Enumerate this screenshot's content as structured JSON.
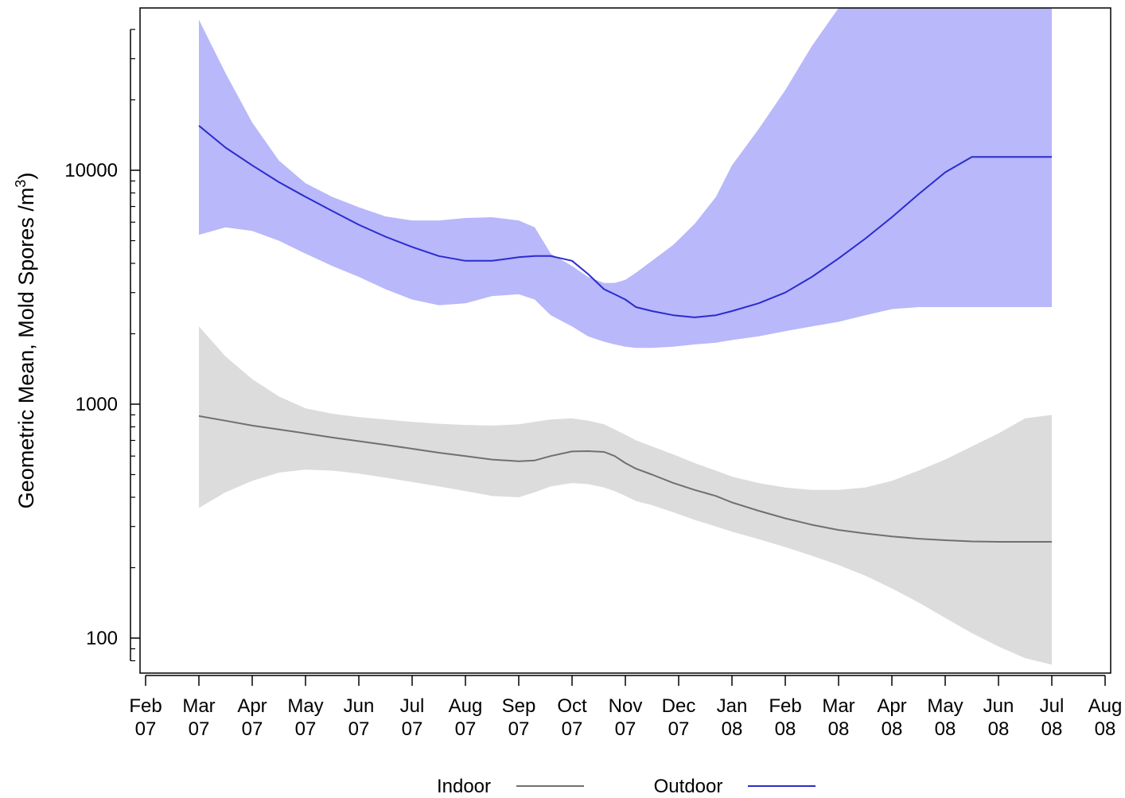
{
  "chart_data": {
    "type": "line",
    "ylabel": "Geometric Mean, Mold Spores /m",
    "ylabel_superscript": "3",
    "ylabel_suffix": ")",
    "ylabel_prefix_paren": "",
    "yscale": "log",
    "ylim": [
      70,
      50000
    ],
    "yticks_major": [
      {
        "value": 100,
        "label": "100"
      },
      {
        "value": 1000,
        "label": "1000"
      },
      {
        "value": 10000,
        "label": "10000"
      }
    ],
    "yticks_minor": [
      80,
      90,
      200,
      300,
      400,
      500,
      600,
      700,
      800,
      900,
      2000,
      3000,
      4000,
      5000,
      6000,
      7000,
      8000,
      9000,
      20000,
      30000,
      40000
    ],
    "xlim": [
      -1,
      18
    ],
    "xticks": [
      {
        "pos": 0,
        "month": "Feb",
        "year": "07"
      },
      {
        "pos": 1,
        "month": "Mar",
        "year": "07"
      },
      {
        "pos": 2,
        "month": "Apr",
        "year": "07"
      },
      {
        "pos": 3,
        "month": "May",
        "year": "07"
      },
      {
        "pos": 4,
        "month": "Jun",
        "year": "07"
      },
      {
        "pos": 5,
        "month": "Jul",
        "year": "07"
      },
      {
        "pos": 6,
        "month": "Aug",
        "year": "07"
      },
      {
        "pos": 7,
        "month": "Sep",
        "year": "07"
      },
      {
        "pos": 8,
        "month": "Oct",
        "year": "07"
      },
      {
        "pos": 9,
        "month": "Nov",
        "year": "07"
      },
      {
        "pos": 10,
        "month": "Dec",
        "year": "07"
      },
      {
        "pos": 11,
        "month": "Jan",
        "year": "08"
      },
      {
        "pos": 12,
        "month": "Feb",
        "year": "08"
      },
      {
        "pos": 13,
        "month": "Mar",
        "year": "08"
      },
      {
        "pos": 14,
        "month": "Apr",
        "year": "08"
      },
      {
        "pos": 15,
        "month": "May",
        "year": "08"
      },
      {
        "pos": 16,
        "month": "Jun",
        "year": "08"
      },
      {
        "pos": 17,
        "month": "Jul",
        "year": "08"
      },
      {
        "pos": 18,
        "month": "Aug",
        "year": "08"
      }
    ],
    "x": [
      1,
      1.5,
      2,
      2.5,
      3,
      3.5,
      4,
      4.5,
      5,
      5.5,
      6,
      6.5,
      7,
      7.3,
      7.6,
      8,
      8.3,
      8.6,
      8.8,
      9,
      9.2,
      9.5,
      9.9,
      10.3,
      10.7,
      11,
      11.5,
      12,
      12.5,
      13,
      13.5,
      14,
      14.5,
      15,
      15.5,
      16,
      16.5,
      17
    ],
    "series": [
      {
        "name": "Indoor",
        "color": "#707070",
        "band_color": "#dcdcdc",
        "mean": [
          890,
          850,
          810,
          780,
          750,
          720,
          695,
          670,
          645,
          620,
          600,
          580,
          570,
          575,
          600,
          628,
          630,
          625,
          600,
          560,
          530,
          500,
          460,
          430,
          405,
          380,
          350,
          325,
          305,
          290,
          280,
          272,
          266,
          262,
          259,
          258,
          258,
          258
        ],
        "lower": [
          360,
          420,
          470,
          510,
          525,
          520,
          505,
          485,
          465,
          445,
          425,
          405,
          400,
          420,
          445,
          460,
          455,
          440,
          425,
          405,
          385,
          370,
          345,
          320,
          300,
          285,
          265,
          245,
          225,
          205,
          185,
          163,
          142,
          122,
          105,
          92,
          82,
          77
        ],
        "upper": [
          2150,
          1600,
          1280,
          1080,
          960,
          910,
          880,
          860,
          840,
          825,
          815,
          810,
          820,
          840,
          860,
          870,
          850,
          820,
          780,
          740,
          700,
          660,
          610,
          560,
          520,
          490,
          460,
          440,
          430,
          430,
          440,
          470,
          520,
          580,
          660,
          750,
          870,
          900
        ]
      },
      {
        "name": "Outdoor",
        "color": "#2b2bd0",
        "band_color": "#b8b8fa",
        "mean": [
          15500,
          12500,
          10500,
          8900,
          7700,
          6700,
          5850,
          5200,
          4700,
          4300,
          4100,
          4100,
          4250,
          4300,
          4300,
          4100,
          3600,
          3100,
          2950,
          2800,
          2600,
          2500,
          2400,
          2350,
          2400,
          2500,
          2700,
          3000,
          3500,
          4200,
          5100,
          6300,
          7900,
          9800,
          11400,
          11400,
          11400,
          11400
        ],
        "lower": [
          5300,
          5700,
          5500,
          5000,
          4400,
          3900,
          3500,
          3100,
          2800,
          2650,
          2700,
          2900,
          2950,
          2800,
          2400,
          2150,
          1950,
          1850,
          1800,
          1760,
          1740,
          1740,
          1760,
          1800,
          1830,
          1880,
          1950,
          2050,
          2150,
          2250,
          2400,
          2550,
          2600,
          2600,
          2600,
          2600,
          2600,
          2600
        ],
        "upper": [
          44000,
          26000,
          16000,
          11000,
          8800,
          7700,
          6950,
          6350,
          6100,
          6100,
          6250,
          6300,
          6100,
          5700,
          4400,
          3900,
          3500,
          3300,
          3300,
          3400,
          3650,
          4100,
          4800,
          5900,
          7700,
          10500,
          15000,
          22000,
          34000,
          50000,
          50000,
          50000,
          50000,
          50000,
          50000,
          50000,
          50000,
          50000
        ]
      }
    ],
    "legend": {
      "position": "bottom",
      "items": [
        "Indoor",
        "Outdoor"
      ]
    }
  }
}
